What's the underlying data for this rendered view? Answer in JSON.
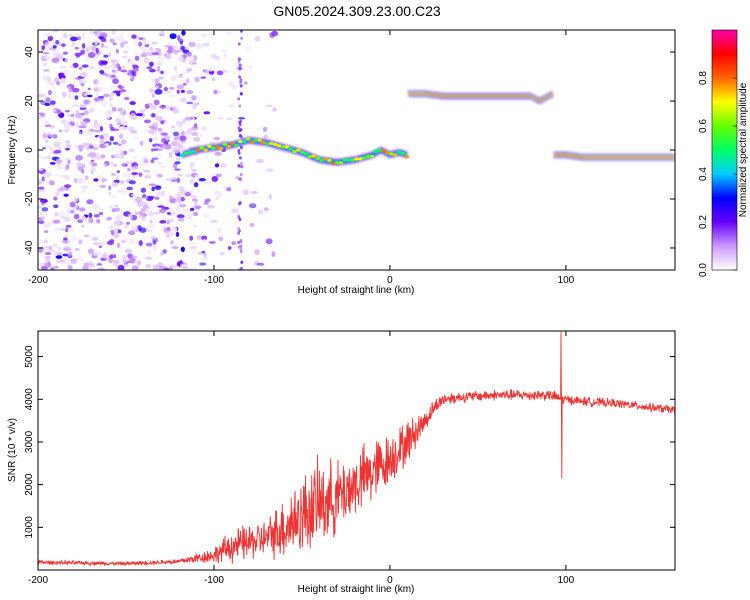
{
  "title": "GN05.2024.309.23.00.C23",
  "chart_data": [
    {
      "type": "heatmap",
      "xlabel": "Height of straight line (km)",
      "ylabel": "Frequency (Hz)",
      "xlim": [
        -200,
        162
      ],
      "ylim": [
        -49,
        49
      ],
      "xticks": [
        -200,
        -100,
        0,
        100
      ],
      "yticks": [
        -40,
        -20,
        0,
        20,
        40
      ],
      "grid": false,
      "colorbar": {
        "label": "Normalized spectral amplitude",
        "range": [
          0,
          1
        ],
        "ticks": [
          "0.0",
          "0.2",
          "0.4",
          "0.6",
          "0.8"
        ],
        "colors": [
          "#ffffff",
          "#cc99ff",
          "#6600ff",
          "#0000ff",
          "#00ccff",
          "#00ff66",
          "#66ff00",
          "#ffff00",
          "#ff6600",
          "#ff0000",
          "#ff00aa"
        ]
      },
      "tracks": [
        {
          "x": [
            -118,
            -110,
            -100,
            -90,
            -80,
            -70,
            -60,
            -50,
            -40,
            -30,
            -20,
            -10,
            -5,
            0,
            5,
            10
          ],
          "y": [
            -2,
            0,
            1,
            2,
            4,
            3,
            1,
            -1,
            -4,
            -5,
            -4,
            -2,
            0,
            -2,
            -1,
            -2
          ],
          "amplitude": 0.45
        },
        {
          "x": [
            10,
            20,
            30,
            40,
            50,
            60,
            70,
            80,
            85,
            90,
            93
          ],
          "y": [
            23,
            23,
            22,
            22,
            22,
            22,
            22,
            22,
            20,
            22,
            23
          ],
          "amplitude": 0.95
        },
        {
          "x": [
            93,
            100,
            110,
            120,
            130,
            140,
            150,
            162
          ],
          "y": [
            -2,
            -2,
            -3,
            -3,
            -3,
            -3,
            -3,
            -3
          ],
          "amplitude": 0.9
        }
      ],
      "noise_region": {
        "x": [
          -200,
          -85
        ],
        "amplitude": 0.25
      }
    },
    {
      "type": "line",
      "xlabel": "Height of straight line (km)",
      "ylabel": "SNR (10 * v/v)",
      "xlim": [
        -200,
        162
      ],
      "ylim": [
        0,
        5600
      ],
      "xticks": [
        -200,
        -100,
        0,
        100
      ],
      "yticks": [
        1000,
        2000,
        3000,
        4000,
        5000
      ],
      "grid": false,
      "series_color": "#ee3333",
      "envelope": {
        "x": [
          -200,
          -150,
          -120,
          -100,
          -90,
          -80,
          -70,
          -60,
          -50,
          -40,
          -30,
          -20,
          -10,
          0,
          10,
          20,
          25,
          30,
          40,
          60,
          80,
          90,
          95,
          97,
          100,
          110,
          130,
          150,
          162
        ],
        "mean": [
          180,
          150,
          200,
          350,
          550,
          650,
          750,
          1000,
          1300,
          1550,
          1700,
          2000,
          2300,
          2600,
          3000,
          3500,
          3800,
          4000,
          4050,
          4100,
          4100,
          4100,
          4050,
          4000,
          4000,
          3950,
          3900,
          3800,
          3750
        ],
        "jitter": [
          60,
          50,
          70,
          220,
          450,
          500,
          500,
          900,
          1100,
          1200,
          1000,
          900,
          900,
          700,
          600,
          300,
          220,
          180,
          150,
          150,
          150,
          150,
          150,
          150,
          130,
          130,
          120,
          120,
          120
        ]
      },
      "spikes": [
        {
          "x": 97.2,
          "y": 5580
        },
        {
          "x": 97.6,
          "y": 2150
        }
      ]
    }
  ]
}
